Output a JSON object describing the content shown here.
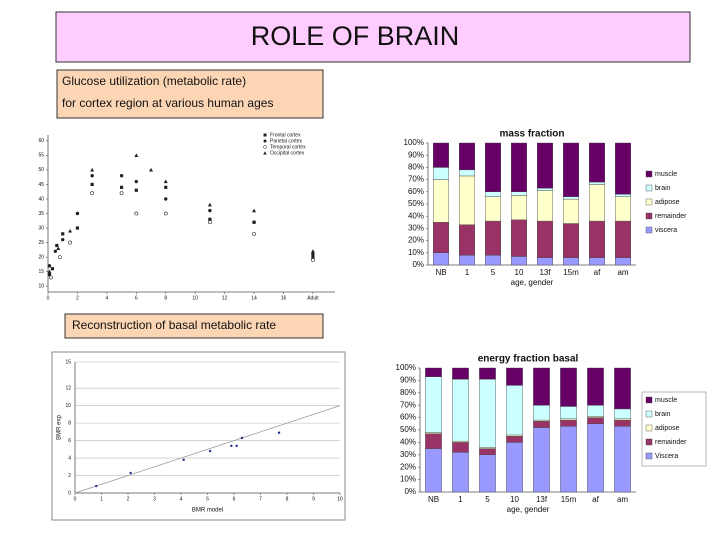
{
  "title": "ROLE OF BRAIN",
  "captions": [
    [
      "Glucose utilization (metabolic rate)",
      "for cortex region at various human ages"
    ],
    [
      "Reconstruction of basal metabolic rate"
    ]
  ],
  "chart_data": [
    {
      "type": "scatter",
      "xlim": [
        0,
        19.5
      ],
      "xticks": [
        0,
        2,
        4,
        6,
        8,
        10,
        12,
        14,
        16,
        {
          "value": 18,
          "label": "Adult"
        }
      ],
      "ylim": [
        8,
        62
      ],
      "yticks": [
        10,
        15,
        20,
        25,
        30,
        35,
        40,
        45,
        50,
        55,
        60
      ],
      "grid": false,
      "legend": "top-right",
      "series": [
        {
          "name": "Frontal cortex",
          "color": "#222222",
          "marker": "square",
          "x": [
            0.1,
            0.3,
            0.6,
            1,
            2,
            3,
            5,
            6,
            8,
            11,
            14,
            18
          ],
          "values": [
            14,
            16,
            24,
            28,
            30,
            45,
            44,
            43,
            44,
            33,
            32,
            20
          ]
        },
        {
          "name": "Parietal cortex",
          "color": "#222222",
          "marker": "circle",
          "x": [
            0.1,
            0.5,
            1,
            2,
            3,
            5,
            6,
            8,
            11,
            14,
            18
          ],
          "values": [
            17,
            22,
            26,
            35,
            48,
            48,
            46,
            40,
            36,
            32,
            21
          ]
        },
        {
          "name": "Temporal cortex",
          "color": "#222222",
          "marker": "open-circle",
          "x": [
            0.2,
            0.8,
            1.5,
            3,
            5,
            6,
            8,
            11,
            14,
            18
          ],
          "values": [
            13,
            20,
            25,
            42,
            42,
            35,
            35,
            32,
            28,
            19
          ]
        },
        {
          "name": "Occipital cortex",
          "color": "#222222",
          "marker": "triangle",
          "x": [
            0.1,
            0.7,
            1.5,
            3,
            6,
            7,
            8,
            11,
            14,
            18
          ],
          "values": [
            15,
            23,
            29,
            50,
            55,
            50,
            46,
            38,
            36,
            22
          ]
        }
      ]
    },
    {
      "type": "bar",
      "stacked": true,
      "title": "mass fraction",
      "x_label": "age, gender",
      "categories": [
        "NB",
        "1",
        "5",
        "10",
        "13f",
        "15m",
        "af",
        "am"
      ],
      "ylim": [
        0,
        100
      ],
      "yticks": [
        {
          "value": 0,
          "label": "0%"
        },
        {
          "value": 10,
          "label": "10%"
        },
        {
          "value": 20,
          "label": "20%"
        },
        {
          "value": 30,
          "label": "30%"
        },
        {
          "value": 40,
          "label": "40%"
        },
        {
          "value": 50,
          "label": "50%"
        },
        {
          "value": 60,
          "label": "60%"
        },
        {
          "value": 70,
          "label": "70%"
        },
        {
          "value": 80,
          "label": "80%"
        },
        {
          "value": 90,
          "label": "90%"
        },
        {
          "value": 100,
          "label": "100%"
        }
      ],
      "grid": false,
      "legend": "right",
      "series": [
        {
          "name": "viscera",
          "color": "#9999ff",
          "values": [
            10,
            8,
            8,
            7,
            6,
            6,
            6,
            6
          ]
        },
        {
          "name": "remainder",
          "color": "#993366",
          "values": [
            25,
            25,
            28,
            30,
            30,
            28,
            30,
            30
          ]
        },
        {
          "name": "adipose",
          "color": "#ffffcc",
          "values": [
            35,
            40,
            20,
            20,
            25,
            20,
            30,
            20
          ]
        },
        {
          "name": "brain",
          "color": "#ccffff",
          "values": [
            10,
            5,
            4,
            3,
            2,
            2,
            2,
            2
          ]
        },
        {
          "name": "muscle",
          "color": "#660066",
          "values": [
            20,
            22,
            40,
            40,
            37,
            44,
            32,
            42
          ]
        }
      ]
    },
    {
      "type": "scatter",
      "x_label": "BMR model",
      "y_label": "BMR exp",
      "xlim": [
        0,
        10
      ],
      "xticks": [
        0,
        1,
        2,
        3,
        4,
        5,
        6,
        7,
        8,
        9,
        10
      ],
      "ylim": [
        0,
        15
      ],
      "yticks": [
        0,
        2,
        4,
        6,
        8,
        10,
        12,
        15
      ],
      "grid": true,
      "series": [
        {
          "color": "#999999",
          "marker": "line",
          "x": [
            0,
            10
          ],
          "values": [
            0,
            10
          ]
        },
        {
          "color": "#1f2f8f",
          "marker": "dot",
          "x": [
            0.8,
            2.1,
            4.1,
            5.1,
            5.9,
            6.1,
            6.3,
            7.7
          ],
          "values": [
            0.8,
            2.3,
            3.8,
            4.8,
            5.4,
            5.4,
            6.3,
            6.9
          ]
        }
      ]
    },
    {
      "type": "bar",
      "stacked": true,
      "title": "energy fraction basal",
      "x_label": "age, gender",
      "categories": [
        "NB",
        "1",
        "5",
        "10",
        "13f",
        "15m",
        "af",
        "am"
      ],
      "ylim": [
        0,
        100
      ],
      "yticks": [
        {
          "value": 0,
          "label": "0%"
        },
        {
          "value": 10,
          "label": "10%"
        },
        {
          "value": 20,
          "label": "20%"
        },
        {
          "value": 30,
          "label": "30%"
        },
        {
          "value": 40,
          "label": "40%"
        },
        {
          "value": 50,
          "label": "50%"
        },
        {
          "value": 60,
          "label": "60%"
        },
        {
          "value": 70,
          "label": "70%"
        },
        {
          "value": 80,
          "label": "80%"
        },
        {
          "value": 90,
          "label": "90%"
        },
        {
          "value": 100,
          "label": "100%"
        }
      ],
      "grid": false,
      "legend": "right",
      "series": [
        {
          "name": "Viscera",
          "color": "#9999ff",
          "values": [
            35,
            32,
            30,
            40,
            52,
            53,
            55,
            53
          ]
        },
        {
          "name": "remainder",
          "color": "#993366",
          "values": [
            12,
            8,
            5,
            5,
            5,
            5,
            5,
            5
          ]
        },
        {
          "name": "adipose",
          "color": "#ffffcc",
          "values": [
            1,
            1,
            1,
            1,
            1,
            1,
            1,
            1
          ]
        },
        {
          "name": "brain",
          "color": "#ccffff",
          "values": [
            45,
            50,
            55,
            40,
            12,
            10,
            9,
            8
          ]
        },
        {
          "name": "muscle",
          "color": "#660066",
          "values": [
            7,
            9,
            9,
            14,
            30,
            31,
            30,
            33
          ]
        }
      ]
    }
  ]
}
